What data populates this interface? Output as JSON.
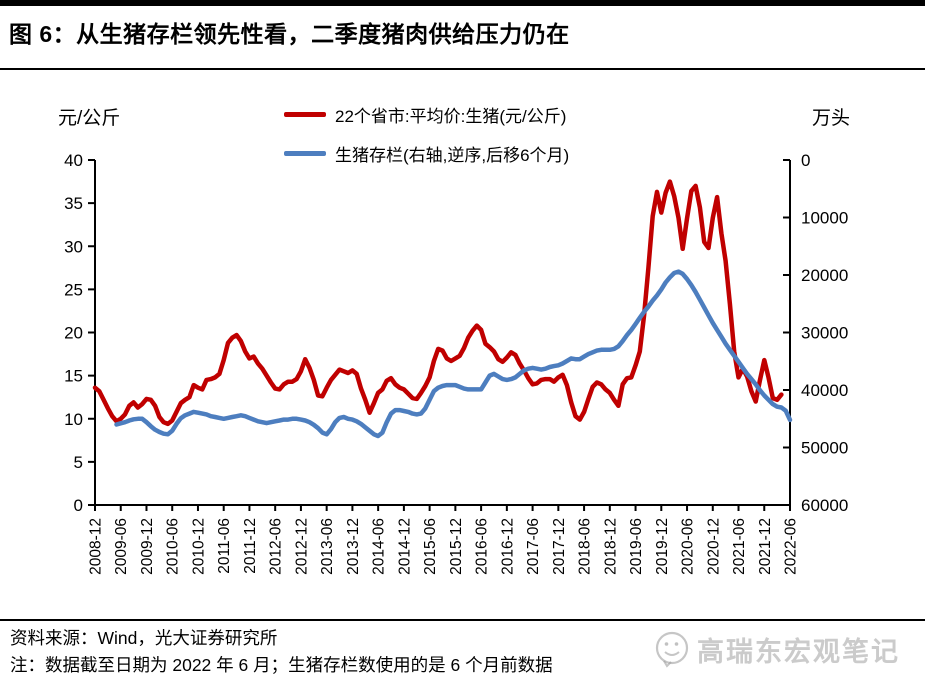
{
  "page": {
    "title": "图 6：从生猪存栏领先性看，二季度猪肉供给压力仍在",
    "source_line": "资料来源：Wind，光大证券研究所",
    "note_line": "注：数据截至日期为 2022 年 6 月；生猪存栏数使用的是 6 个月前数据",
    "watermark": "高瑞东宏观笔记"
  },
  "chart_data": {
    "type": "line",
    "title": "",
    "grid": false,
    "legend_position": "top-center",
    "x_axis": {
      "start": "2008-12",
      "end": "2022-06",
      "step": "1 month",
      "tick_labels": [
        "2008-12",
        "2009-06",
        "2009-12",
        "2010-06",
        "2010-12",
        "2011-06",
        "2011-12",
        "2012-06",
        "2012-12",
        "2013-06",
        "2013-12",
        "2014-06",
        "2014-12",
        "2015-06",
        "2015-12",
        "2016-06",
        "2016-12",
        "2017-06",
        "2017-12",
        "2018-06",
        "2018-12",
        "2019-06",
        "2019-12",
        "2020-06",
        "2020-12",
        "2021-06",
        "2021-12",
        "2022-06"
      ]
    },
    "left_axis": {
      "unit": "元/公斤",
      "min": 0,
      "max": 40,
      "ticks": [
        40,
        35,
        30,
        25,
        20,
        15,
        10,
        5,
        0
      ]
    },
    "right_axis": {
      "unit": "万头",
      "min": 0,
      "max": 60000,
      "inverted": true,
      "ticks": [
        0,
        10000,
        20000,
        30000,
        40000,
        50000,
        60000
      ]
    },
    "series": [
      {
        "name": "price",
        "label": "22个省市:平均价:生猪(元/公斤)",
        "color": "#C00000",
        "axis": "left",
        "start_month": "2008-12",
        "start_index": 0,
        "values": [
          13.6,
          13.2,
          12.2,
          11.2,
          10.3,
          9.7,
          10.0,
          10.5,
          11.5,
          11.9,
          11.3,
          11.7,
          12.3,
          12.2,
          11.5,
          10.2,
          9.6,
          9.4,
          9.8,
          10.8,
          11.8,
          12.2,
          12.5,
          13.9,
          13.6,
          13.4,
          14.5,
          14.6,
          14.8,
          15.2,
          16.8,
          18.8,
          19.4,
          19.7,
          19.0,
          17.8,
          17.0,
          17.2,
          16.4,
          15.8,
          15.0,
          14.2,
          13.5,
          13.4,
          14.0,
          14.3,
          14.3,
          14.6,
          15.5,
          16.9,
          15.9,
          14.5,
          12.7,
          12.6,
          13.6,
          14.5,
          15.1,
          15.7,
          15.5,
          15.3,
          15.6,
          15.2,
          13.5,
          12.2,
          10.7,
          11.8,
          13.0,
          13.4,
          14.4,
          14.7,
          14.0,
          13.6,
          13.4,
          12.9,
          12.4,
          12.3,
          13.0,
          13.8,
          14.8,
          16.7,
          18.1,
          17.9,
          17.0,
          16.7,
          17.0,
          17.3,
          18.2,
          19.4,
          20.2,
          20.8,
          20.3,
          18.7,
          18.3,
          17.8,
          16.9,
          16.6,
          17.1,
          17.7,
          17.4,
          16.4,
          15.6,
          14.7,
          14.0,
          14.1,
          14.5,
          14.6,
          14.6,
          14.3,
          14.8,
          15.1,
          13.9,
          11.9,
          10.3,
          9.9,
          10.8,
          12.3,
          13.7,
          14.2,
          14.0,
          13.4,
          13.0,
          12.2,
          11.5,
          14.0,
          14.7,
          14.8,
          16.2,
          17.8,
          22.0,
          27.5,
          33.5,
          36.3,
          33.9,
          36.2,
          37.5,
          35.8,
          33.3,
          29.7,
          33.2,
          36.4,
          37.0,
          34.5,
          30.5,
          29.8,
          33.3,
          35.7,
          31.5,
          28.3,
          23.3,
          17.8,
          14.8,
          15.8,
          14.9,
          13.2,
          12.0,
          14.5,
          16.8,
          14.8,
          12.4,
          12.2,
          12.8
        ]
      },
      {
        "name": "inventory",
        "label": "生猪存栏(右轴,逆序,后移6个月)",
        "color": "#4D7EBF",
        "axis": "right",
        "start_month": "2009-05",
        "start_index": 5,
        "values": [
          46000,
          45800,
          45600,
          45300,
          45100,
          45000,
          45000,
          45600,
          46300,
          46900,
          47300,
          47600,
          47700,
          47100,
          45900,
          44900,
          44400,
          44100,
          43800,
          43950,
          44100,
          44250,
          44550,
          44700,
          44850,
          45000,
          44850,
          44700,
          44550,
          44400,
          44550,
          44850,
          45150,
          45450,
          45600,
          45750,
          45600,
          45450,
          45300,
          45150,
          45150,
          45000,
          45000,
          45150,
          45300,
          45600,
          46050,
          46650,
          47400,
          47700,
          46800,
          45600,
          44850,
          44700,
          45000,
          45150,
          45450,
          45900,
          46500,
          47100,
          47700,
          48000,
          47400,
          45600,
          44100,
          43500,
          43500,
          43650,
          43800,
          44100,
          44250,
          44100,
          43200,
          41700,
          40200,
          39600,
          39300,
          39150,
          39150,
          39150,
          39450,
          39750,
          39900,
          39900,
          39900,
          39900,
          38700,
          37500,
          37200,
          37650,
          38100,
          38250,
          38100,
          37800,
          37200,
          36600,
          36300,
          36150,
          36300,
          36450,
          36300,
          36000,
          35850,
          35700,
          35400,
          34950,
          34500,
          34650,
          34650,
          34200,
          33750,
          33450,
          33150,
          33000,
          33000,
          33000,
          32850,
          32400,
          31500,
          30450,
          29550,
          28500,
          27450,
          26400,
          25500,
          24450,
          23550,
          22500,
          21300,
          20400,
          19650,
          19400,
          19800,
          20700,
          21750,
          22950,
          24300,
          25650,
          27000,
          28350,
          29550,
          30750,
          31950,
          33000,
          34050,
          35100,
          36150,
          37200,
          38100,
          39000,
          40050,
          40950,
          41700,
          42450,
          42900,
          43050,
          43600,
          45200
        ]
      }
    ]
  }
}
